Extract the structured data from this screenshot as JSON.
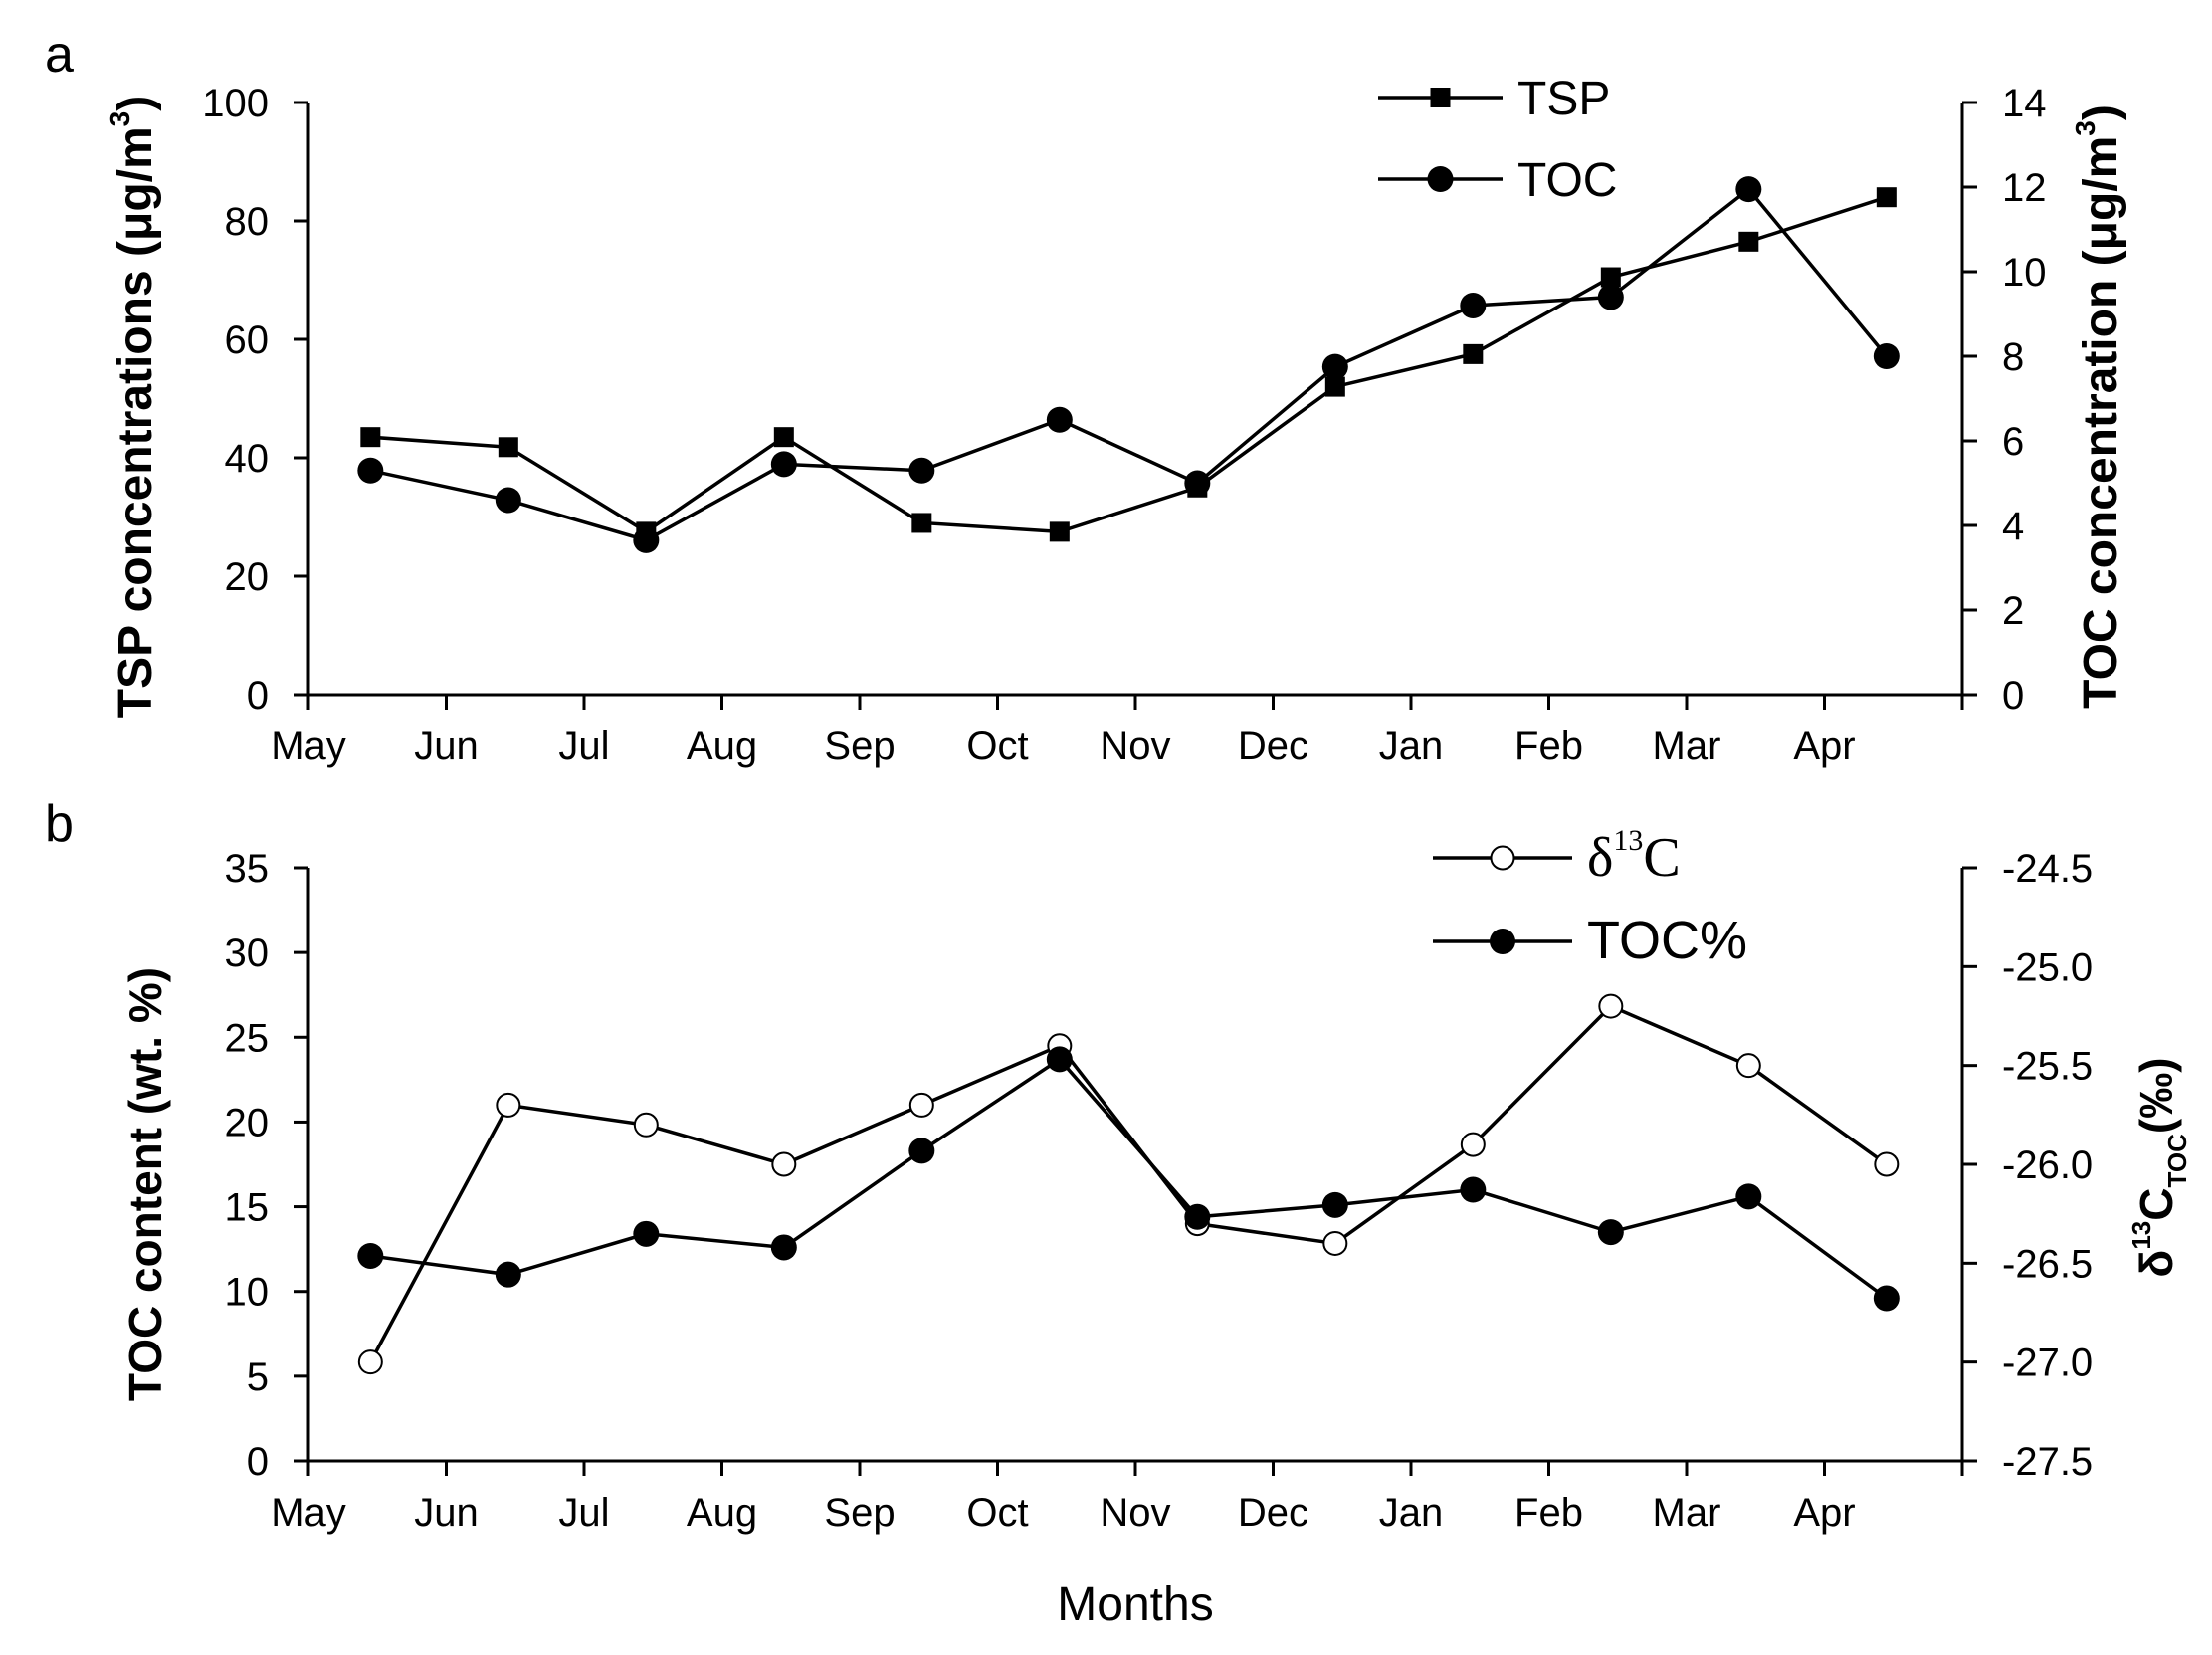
{
  "chart_data": [
    {
      "panel_label": "a",
      "type": "line",
      "x_tick_labels": [
        "May",
        "Jun",
        "Jul",
        "Aug",
        "Sep",
        "Oct",
        "Nov",
        "Dec",
        "Jan",
        "Feb",
        "Mar",
        "Apr"
      ],
      "xlim": [
        0,
        12
      ],
      "ylabel_left": "TSP concentrations (μg/m",
      "ylabel_left_sup": "3",
      "ylabel_left_close": ")",
      "ylim_left": [
        0,
        100
      ],
      "yticks_left": [
        "0",
        "20",
        "40",
        "60",
        "80",
        "100"
      ],
      "ylabel_right": "TOC concentration (μg/m",
      "ylabel_right_sup": "3",
      "ylabel_right_close": ")",
      "ylim_right": [
        0,
        14
      ],
      "yticks_right": [
        "0",
        "2",
        "4",
        "6",
        "8",
        "10",
        "12",
        "14"
      ],
      "legend_location": "top-right",
      "series": [
        {
          "name": "TSP",
          "marker": "square-filled",
          "axis": "left",
          "x": [
            0.45,
            1.45,
            2.45,
            3.45,
            4.45,
            5.45,
            6.45,
            7.45,
            8.45,
            9.45,
            10.45,
            11.45
          ],
          "values": [
            43.5,
            41.8,
            27.5,
            43.5,
            29,
            27.5,
            35,
            52,
            57.5,
            70.5,
            76.5,
            84
          ]
        },
        {
          "name": "TOC",
          "marker": "circle-filled",
          "axis": "right",
          "x": [
            0.45,
            1.45,
            2.45,
            3.45,
            4.45,
            5.45,
            6.45,
            7.45,
            8.45,
            9.45,
            10.45,
            11.45
          ],
          "values": [
            5.3,
            4.6,
            3.65,
            5.45,
            5.3,
            6.5,
            5,
            7.75,
            9.2,
            9.4,
            11.95,
            8.0
          ]
        }
      ]
    },
    {
      "panel_label": "b",
      "type": "line",
      "x_tick_labels": [
        "May",
        "Jun",
        "Jul",
        "Aug",
        "Sep",
        "Oct",
        "Nov",
        "Dec",
        "Jan",
        "Feb",
        "Mar",
        "Apr"
      ],
      "xlim": [
        0,
        12
      ],
      "xlabel": "Months",
      "ylabel_left": "TOC content (wt. %)",
      "ylim_left": [
        0,
        35
      ],
      "yticks_left": [
        "0",
        "5",
        "10",
        "15",
        "20",
        "25",
        "30",
        "35"
      ],
      "ylabel_right_prefix": "δ",
      "ylabel_right_sup": "13",
      "ylabel_right_main": "C",
      "ylabel_right_sub": "TOC",
      "ylabel_right_suffix": "(‰)",
      "ylim_right": [
        -27.5,
        -24.5
      ],
      "yticks_right": [
        "-27.5",
        "-27.0",
        "-26.5",
        "-26.0",
        "-25.5",
        "-25.0",
        "-24.5"
      ],
      "legend_location": "top-right",
      "series": [
        {
          "name": "δ13C",
          "legend_prefix": "δ",
          "legend_sup": "13",
          "legend_main": "C",
          "marker": "circle-open",
          "axis": "right",
          "x": [
            0.45,
            1.45,
            2.45,
            3.45,
            4.45,
            5.45,
            6.45,
            7.45,
            8.45,
            9.45,
            10.45,
            11.45
          ],
          "values": [
            -27.0,
            -25.7,
            -25.8,
            -26.0,
            -25.7,
            -25.4,
            -26.3,
            -26.4,
            -25.9,
            -25.2,
            -25.5,
            -26.0
          ]
        },
        {
          "name": "TOC%",
          "marker": "circle-filled",
          "axis": "left",
          "x": [
            0.45,
            1.45,
            2.45,
            3.45,
            4.45,
            5.45,
            6.45,
            7.45,
            8.45,
            9.45,
            10.45,
            11.45
          ],
          "values": [
            12.1,
            11.0,
            13.4,
            12.6,
            18.3,
            23.7,
            14.4,
            15.1,
            16.0,
            13.5,
            15.6,
            9.6
          ]
        }
      ]
    }
  ]
}
